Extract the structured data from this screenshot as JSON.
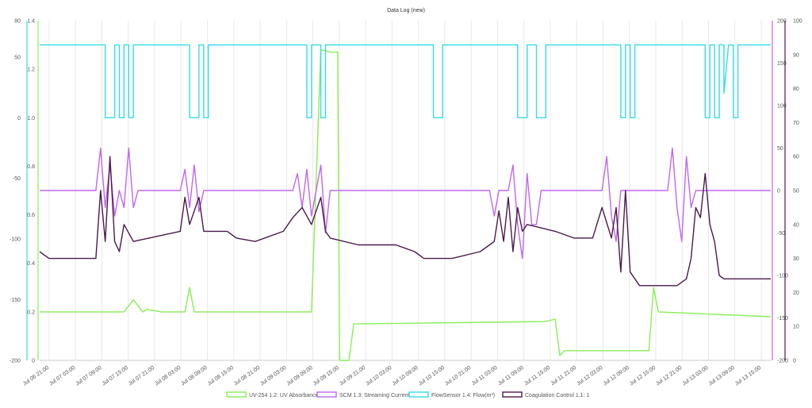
{
  "chart_data": {
    "type": "line",
    "title": "Data Log (new)",
    "grid": "vertical",
    "legend_position": "bottom",
    "x_ticks": [
      "Jul 06 21:00",
      "Jul 07 03:00",
      "Jul 07 09:00",
      "Jul 07 15:00",
      "Jul 07 21:00",
      "Jul 08 03:00",
      "Jul 08 09:00",
      "Jul 08 15:00",
      "Jul 08 21:00",
      "Jul 09 03:00",
      "Jul 09 09:00",
      "Jul 09 15:00",
      "Jul 09 21:00",
      "Jul 10 03:00",
      "Jul 10 09:00",
      "Jul 10 15:00",
      "Jul 10 21:00",
      "Jul 11 03:00",
      "Jul 11 09:00",
      "Jul 11 15:00",
      "Jul 11 21:00",
      "Jul 12 03:00",
      "Jul 12 09:00",
      "Jul 12 15:00",
      "Jul 12 21:00",
      "Jul 13 03:00",
      "Jul 13 09:00",
      "Jul 13 15:00"
    ],
    "axes": {
      "left_outer": {
        "color": "#33dde6",
        "min": -200,
        "max": 80,
        "ticks": [
          "-200",
          "-150",
          "-100",
          "-50",
          "0",
          "50",
          "80"
        ],
        "tick_values": [
          -200,
          -150,
          -100,
          -50,
          0,
          50,
          80
        ]
      },
      "left_inner": {
        "color": "#88ee55",
        "min": 0,
        "max": 1.4,
        "ticks": [
          "0",
          "0.2",
          "0.4",
          "0.6",
          "0.8",
          "1.0",
          "1.2",
          "1.4"
        ],
        "tick_values": [
          0,
          0.2,
          0.4,
          0.6,
          0.8,
          1.0,
          1.2,
          1.4
        ]
      },
      "right_inner": {
        "color": "#c066ee",
        "min": -200,
        "max": 200,
        "ticks": [
          "-200",
          "-150",
          "-100",
          "-50",
          "0",
          "50",
          "100",
          "150",
          "200"
        ],
        "tick_values": [
          -200,
          -150,
          -100,
          -50,
          0,
          50,
          100,
          150,
          200
        ]
      },
      "right_outer": {
        "color": "#4a1a4a",
        "min": 0,
        "max": 100,
        "ticks": [
          "0",
          "10",
          "20",
          "30",
          "40",
          "50",
          "60",
          "70",
          "80",
          "90",
          "100"
        ],
        "tick_values": [
          0,
          10,
          20,
          30,
          40,
          50,
          60,
          70,
          80,
          90,
          100
        ]
      }
    },
    "series": [
      {
        "name": "UV-254 1.2: UV Absorbance",
        "color": "#88ee55",
        "axis": "left_inner",
        "points": [
          [
            0,
            0.2
          ],
          [
            8,
            0.2
          ],
          [
            9,
            0.2
          ],
          [
            10,
            0.25
          ],
          [
            11,
            0.2
          ],
          [
            11.5,
            0.21
          ],
          [
            13,
            0.2
          ],
          [
            15.5,
            0.2
          ],
          [
            16,
            0.3
          ],
          [
            16.5,
            0.2
          ],
          [
            29,
            0.2
          ],
          [
            30,
            1.28
          ],
          [
            31,
            1.27
          ],
          [
            31.8,
            1.27
          ],
          [
            32,
            0
          ],
          [
            33,
            0
          ],
          [
            33.5,
            0.15
          ],
          [
            54,
            0.16
          ],
          [
            55,
            0.17
          ],
          [
            55.5,
            0.02
          ],
          [
            56,
            0.04
          ],
          [
            65,
            0.04
          ],
          [
            65.5,
            0.3
          ],
          [
            66,
            0.2
          ],
          [
            78,
            0.18
          ]
        ]
      },
      {
        "name": "SCM 1.3: Streaming Current",
        "color": "#c066ee",
        "axis": "right_inner",
        "points": [
          [
            0,
            0
          ],
          [
            6,
            0
          ],
          [
            6.5,
            50
          ],
          [
            7,
            -20
          ],
          [
            7.5,
            30
          ],
          [
            8,
            -30
          ],
          [
            8.5,
            0
          ],
          [
            9,
            -20
          ],
          [
            9.5,
            50
          ],
          [
            10,
            -20
          ],
          [
            10.5,
            0
          ],
          [
            15,
            0
          ],
          [
            15.5,
            25
          ],
          [
            16,
            -20
          ],
          [
            16.5,
            30
          ],
          [
            17,
            -25
          ],
          [
            17.5,
            0
          ],
          [
            27,
            0
          ],
          [
            27.5,
            20
          ],
          [
            28,
            -20
          ],
          [
            28.5,
            25
          ],
          [
            29,
            -30
          ],
          [
            30,
            30
          ],
          [
            30.5,
            -50
          ],
          [
            31,
            0
          ],
          [
            48,
            0
          ],
          [
            48.5,
            -30
          ],
          [
            49,
            0
          ],
          [
            50,
            0
          ],
          [
            50.5,
            30
          ],
          [
            51,
            -40
          ],
          [
            51.5,
            -80
          ],
          [
            52,
            20
          ],
          [
            52.5,
            -40
          ],
          [
            53,
            -40
          ],
          [
            53.5,
            0
          ],
          [
            60,
            0
          ],
          [
            60.5,
            40
          ],
          [
            61,
            -30
          ],
          [
            61.5,
            -60
          ],
          [
            62,
            0
          ],
          [
            67,
            0
          ],
          [
            67.5,
            50
          ],
          [
            68,
            -20
          ],
          [
            68.5,
            -60
          ],
          [
            69,
            40
          ],
          [
            69.5,
            -20
          ],
          [
            70,
            0
          ],
          [
            78,
            0
          ]
        ]
      },
      {
        "name": "FlowSensor 1.4: Flow(m³)",
        "color": "#33dde6",
        "axis": "left_outer",
        "points": [
          [
            0,
            60
          ],
          [
            7,
            60
          ],
          [
            7,
            0
          ],
          [
            8,
            0
          ],
          [
            8,
            60
          ],
          [
            8.5,
            60
          ],
          [
            8.5,
            0
          ],
          [
            9,
            0
          ],
          [
            9,
            60
          ],
          [
            9.5,
            60
          ],
          [
            9.5,
            0
          ],
          [
            10,
            0
          ],
          [
            10,
            60
          ],
          [
            16,
            60
          ],
          [
            16,
            0
          ],
          [
            17,
            0
          ],
          [
            17,
            60
          ],
          [
            17.5,
            60
          ],
          [
            17.5,
            0
          ],
          [
            18,
            0
          ],
          [
            18,
            60
          ],
          [
            28.5,
            60
          ],
          [
            28.5,
            0
          ],
          [
            29,
            0
          ],
          [
            29,
            60
          ],
          [
            30,
            60
          ],
          [
            30,
            0
          ],
          [
            30.5,
            0
          ],
          [
            30.5,
            60
          ],
          [
            42,
            60
          ],
          [
            42,
            0
          ],
          [
            43,
            0
          ],
          [
            43,
            60
          ],
          [
            51,
            60
          ],
          [
            51,
            0
          ],
          [
            52,
            0
          ],
          [
            52,
            60
          ],
          [
            53,
            60
          ],
          [
            53,
            0
          ],
          [
            54,
            0
          ],
          [
            54,
            60
          ],
          [
            62,
            60
          ],
          [
            62,
            0
          ],
          [
            62.5,
            0
          ],
          [
            62.5,
            60
          ],
          [
            63,
            60
          ],
          [
            63,
            0
          ],
          [
            63.5,
            0
          ],
          [
            63.5,
            60
          ],
          [
            71,
            60
          ],
          [
            71,
            0
          ],
          [
            71.5,
            0
          ],
          [
            71.5,
            60
          ],
          [
            72,
            60
          ],
          [
            72,
            0
          ],
          [
            72.5,
            0
          ],
          [
            72.5,
            60
          ],
          [
            73,
            60
          ],
          [
            73,
            20
          ],
          [
            73.5,
            60
          ],
          [
            74,
            60
          ],
          [
            74,
            0
          ],
          [
            74.5,
            0
          ],
          [
            74.5,
            60
          ],
          [
            78,
            60
          ]
        ]
      },
      {
        "name": "Coagulation Control 1.1: 1",
        "color": "#4a1a4a",
        "axis": "right_outer",
        "points": [
          [
            0,
            32
          ],
          [
            1,
            30
          ],
          [
            6,
            30
          ],
          [
            6.5,
            50
          ],
          [
            7,
            35
          ],
          [
            7.5,
            60
          ],
          [
            8,
            35
          ],
          [
            8.5,
            32
          ],
          [
            9,
            40
          ],
          [
            10,
            35
          ],
          [
            15,
            38
          ],
          [
            15.5,
            48
          ],
          [
            16,
            40
          ],
          [
            17,
            48
          ],
          [
            17.5,
            38
          ],
          [
            20,
            38
          ],
          [
            21,
            36
          ],
          [
            23,
            35
          ],
          [
            26,
            38
          ],
          [
            27,
            42
          ],
          [
            28,
            45
          ],
          [
            29,
            40
          ],
          [
            30,
            48
          ],
          [
            30.5,
            38
          ],
          [
            31,
            36
          ],
          [
            34,
            34
          ],
          [
            38,
            34
          ],
          [
            40,
            32
          ],
          [
            41,
            30
          ],
          [
            44,
            30
          ],
          [
            47,
            32
          ],
          [
            48,
            34
          ],
          [
            48.5,
            35
          ],
          [
            49,
            44
          ],
          [
            49.5,
            35
          ],
          [
            50,
            48
          ],
          [
            50.5,
            32
          ],
          [
            51,
            45
          ],
          [
            51.5,
            38
          ],
          [
            52,
            40
          ],
          [
            55,
            38
          ],
          [
            57,
            36
          ],
          [
            59,
            36
          ],
          [
            60,
            45
          ],
          [
            61,
            36
          ],
          [
            61.5,
            45
          ],
          [
            62,
            26
          ],
          [
            62.5,
            50
          ],
          [
            63,
            26
          ],
          [
            64,
            22
          ],
          [
            66,
            22
          ],
          [
            68,
            22
          ],
          [
            69,
            24
          ],
          [
            69.5,
            30
          ],
          [
            70,
            45
          ],
          [
            70.5,
            42
          ],
          [
            71,
            55
          ],
          [
            71.5,
            40
          ],
          [
            72,
            35
          ],
          [
            72.5,
            25
          ],
          [
            73,
            24
          ],
          [
            78,
            24
          ]
        ]
      }
    ]
  }
}
